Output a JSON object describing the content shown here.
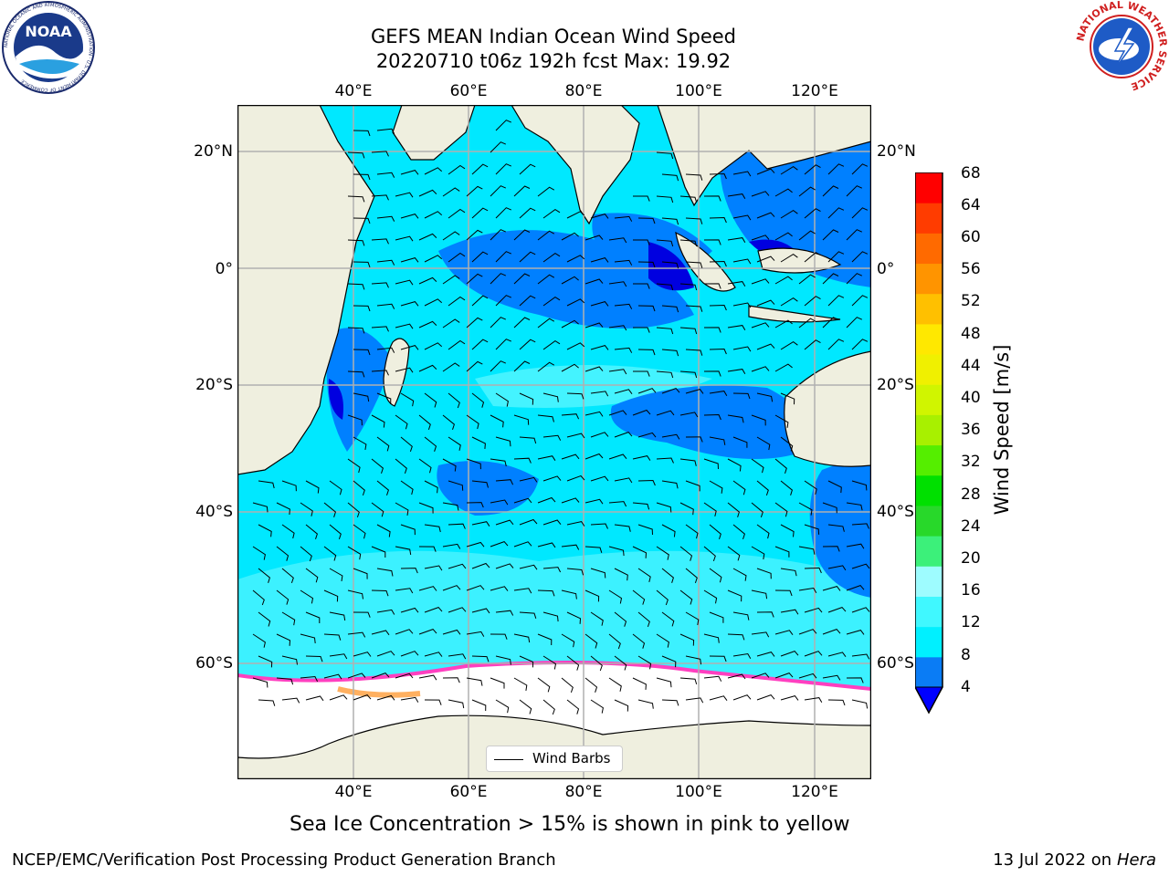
{
  "header": {
    "title_line1": "GEFS MEAN Indian Ocean Wind Speed",
    "title_line2": "20220710 t06z 192h fcst   Max: 19.92"
  },
  "logos": {
    "noaa_text": "NOAA",
    "noaa_ring_text": "NATIONAL OCEANIC AND ATMOSPHERIC ADMINISTRATION · U.S. DEPARTMENT OF COMMERCE",
    "nws_ring_text": "NATIONAL WEATHER SERVICE"
  },
  "map": {
    "lon_ticks": [
      "40°E",
      "60°E",
      "80°E",
      "100°E",
      "120°E"
    ],
    "lat_ticks_left": [
      "20°N",
      "0°",
      "20°S",
      "40°S",
      "60°S"
    ],
    "lat_ticks_right": [
      "20°N",
      "0°",
      "20°S",
      "40°S",
      "60°S"
    ],
    "legend_label": "Wind Barbs",
    "colors": {
      "land": "#efefdf",
      "ice": "#ffffff",
      "ocean_mid": "#00e8ff",
      "ocean_light": "#55f5ff",
      "ocean_blue": "#0080ff",
      "ocean_deep": "#0000e0"
    }
  },
  "colorbar": {
    "label": "Wind Speed [m/s]",
    "ticks": [
      "68",
      "64",
      "60",
      "56",
      "52",
      "48",
      "44",
      "40",
      "36",
      "32",
      "28",
      "24",
      "20",
      "16",
      "12",
      "8",
      "4"
    ],
    "colors_bottom_to_top": [
      "#0a7cf5",
      "#00f0ff",
      "#40f8ff",
      "#9efcff",
      "#3cf07a",
      "#28d82a",
      "#00e000",
      "#55ee00",
      "#a8f000",
      "#d0f500",
      "#f0f000",
      "#ffe800",
      "#ffc000",
      "#ff9400",
      "#ff6a00",
      "#ff3c00",
      "#ff0000"
    ],
    "extend_color": "#0000ff"
  },
  "caption": "Sea Ice Concentration > 15% is shown in pink to yellow",
  "footer": {
    "left": "NCEP/EMC/Verification Post Processing Product Generation Branch",
    "date": "13 Jul 2022 on ",
    "machine": "Hera"
  }
}
